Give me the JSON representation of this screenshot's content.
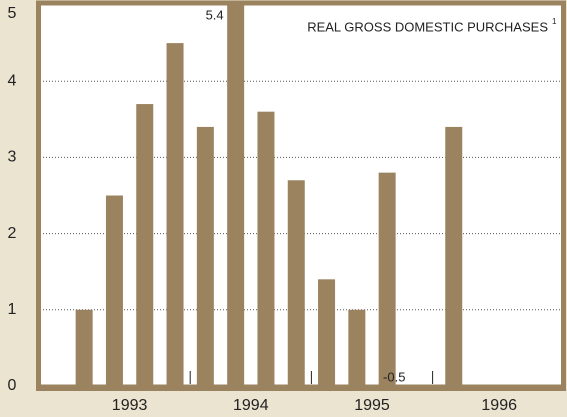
{
  "chart_data": {
    "type": "bar",
    "title": "REAL GROSS DOMESTIC PURCHASES",
    "title_note": "1",
    "categories": [
      null,
      null,
      null,
      null,
      null,
      null,
      null,
      null,
      null,
      null,
      null,
      null,
      null,
      null,
      null,
      null
    ],
    "groups": [
      "1993",
      "1994",
      "1995",
      "1996"
    ],
    "values": [
      1.0,
      2.5,
      3.7,
      4.5,
      3.4,
      5.4,
      3.6,
      2.7,
      1.4,
      1.0,
      2.8,
      -0.5,
      3.4,
      null,
      null,
      null
    ],
    "value_labels": [
      null,
      null,
      null,
      null,
      null,
      "5.4",
      null,
      null,
      null,
      null,
      null,
      "-0.5",
      null,
      null,
      null,
      null
    ],
    "color": "#9b8360",
    "ylim": [
      0,
      5
    ],
    "yticks": [
      0,
      1,
      2,
      3,
      4,
      5
    ],
    "grid": true
  }
}
